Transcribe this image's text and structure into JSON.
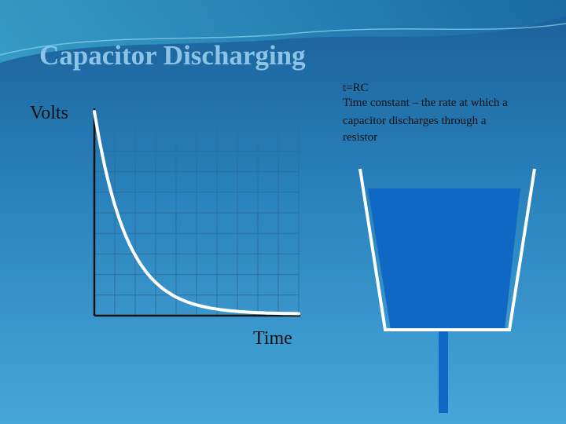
{
  "slide": {
    "title": "Capacitor Discharging",
    "y_label": "Volts",
    "x_label": "Time",
    "note": [
      "t=RC",
      "Time constant – the rate at which a",
      "capacitor discharges through a",
      "resistor"
    ]
  }
}
